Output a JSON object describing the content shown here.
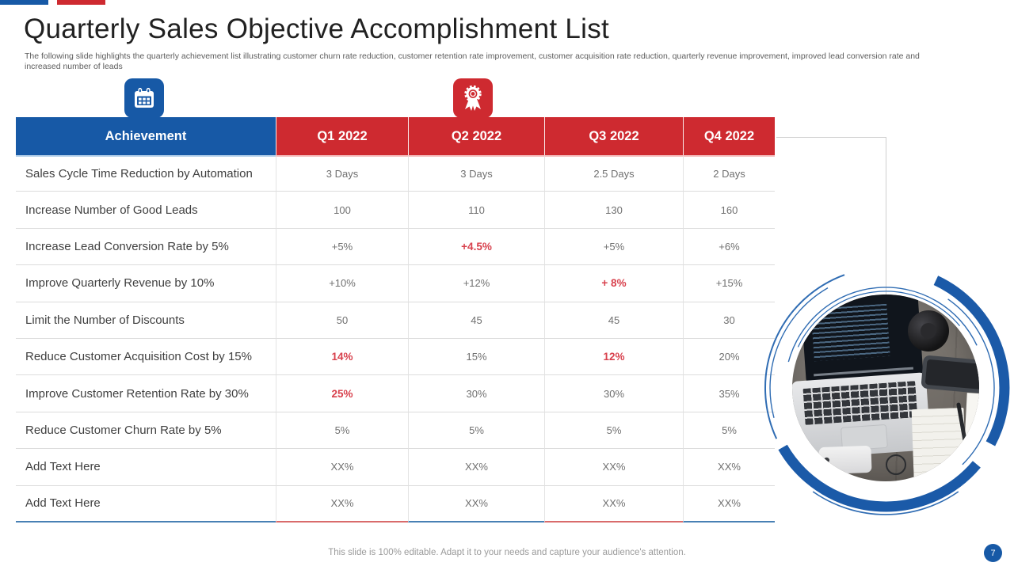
{
  "accent": {
    "blue": "#1759a6",
    "red": "#ce2a30",
    "highlight_red": "#d8414d",
    "line_gray": "#cfcfcf",
    "first_row_top_blue": "#b4d0ea",
    "first_row_top_red": "#f4bebe"
  },
  "header": {
    "title": "Quarterly Sales Objective Accomplishment List",
    "subtitle": "The following slide highlights the quarterly achievement list illustrating customer churn rate reduction, customer retention rate improvement, customer acquisition rate reduction, quarterly revenue improvement, improved lead conversion rate and increased number of leads"
  },
  "icons": {
    "calendar": "calendar-icon",
    "award": "award-rosette-icon"
  },
  "table": {
    "columns": [
      "Achievement",
      "Q1 2022",
      "Q2 2022",
      "Q3 2022",
      "Q4 2022"
    ],
    "rows": [
      {
        "label": "Sales Cycle Time Reduction by Automation",
        "values": [
          "3 Days",
          "3 Days",
          "2.5 Days",
          "2 Days"
        ],
        "highlight": [
          false,
          false,
          false,
          false
        ]
      },
      {
        "label": "Increase Number of Good Leads",
        "values": [
          "100",
          "110",
          "130",
          "160"
        ],
        "highlight": [
          false,
          false,
          false,
          false
        ]
      },
      {
        "label": "Increase Lead Conversion Rate by 5%",
        "values": [
          "+5%",
          "+4.5%",
          "+5%",
          "+6%"
        ],
        "highlight": [
          false,
          true,
          false,
          false
        ]
      },
      {
        "label": "Improve Quarterly Revenue by 10%",
        "values": [
          "+10%",
          "+12%",
          "+ 8%",
          "+15%"
        ],
        "highlight": [
          false,
          false,
          true,
          false
        ]
      },
      {
        "label": "Limit the Number of Discounts",
        "values": [
          "50",
          "45",
          "45",
          "30"
        ],
        "highlight": [
          false,
          false,
          false,
          false
        ]
      },
      {
        "label": "Reduce Customer Acquisition Cost by 15%",
        "values": [
          "14%",
          "15%",
          "12%",
          "20%"
        ],
        "highlight": [
          true,
          false,
          true,
          false
        ]
      },
      {
        "label": "Improve Customer Retention Rate by 30%",
        "values": [
          "25%",
          "30%",
          "30%",
          "35%"
        ],
        "highlight": [
          true,
          false,
          false,
          false
        ]
      },
      {
        "label": "Reduce Customer Churn Rate by 5%",
        "values": [
          "5%",
          "5%",
          "5%",
          "5%"
        ],
        "highlight": [
          false,
          false,
          false,
          false
        ]
      },
      {
        "label": "Add Text Here",
        "values": [
          "XX%",
          "XX%",
          "XX%",
          "XX%"
        ],
        "highlight": [
          false,
          false,
          false,
          false
        ]
      },
      {
        "label": "Add Text Here",
        "values": [
          "XX%",
          "XX%",
          "XX%",
          "XX%"
        ],
        "highlight": [
          false,
          false,
          false,
          false
        ]
      }
    ],
    "bottom_border_colors": [
      "#4880b4",
      "#d96b6b",
      "#4880b4",
      "#d96b6b",
      "#4880b4"
    ]
  },
  "footer": {
    "note": "This slide is 100% editable. Adapt it to your needs and capture your audience's attention.",
    "page_number": "7"
  }
}
